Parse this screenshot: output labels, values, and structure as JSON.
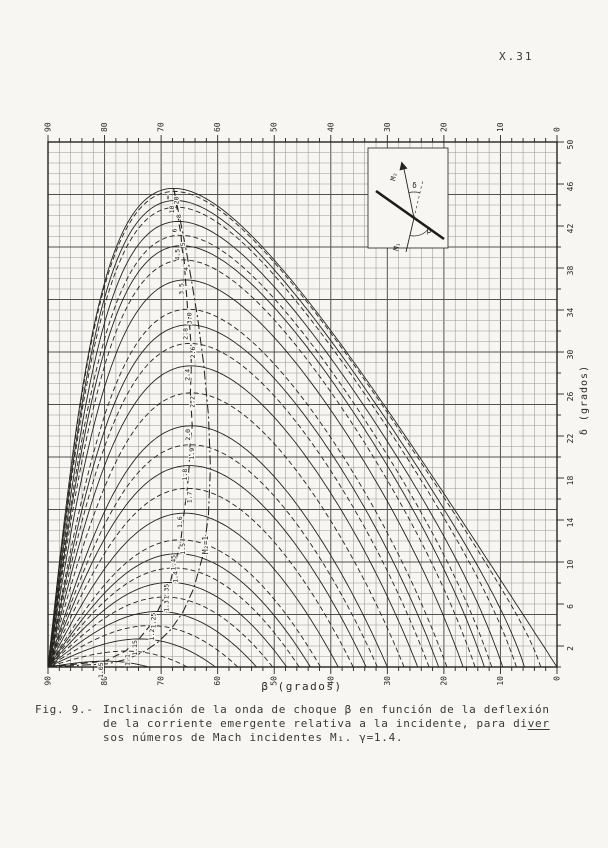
{
  "page": {
    "number": "X.31"
  },
  "caption": {
    "prefix": "Fig. 9.-",
    "line1": "Inclinación de la onda de choque β en función de la deflexión",
    "line2a": "de la corriente emergente relativa a la incidente, para di",
    "line2b": "ver",
    "line3": "sos números de Mach incidentes M₁. γ=1.4."
  },
  "chart_data": {
    "type": "line",
    "title": "Inclinación de la onda de choque β en función de la deflexión δ",
    "xlabel": "β (grados)",
    "ylabel": "δ (grados)",
    "gamma": 1.4,
    "grid": "on",
    "x_axis": {
      "min": 0,
      "max": 90,
      "reversed_left_to_right": true,
      "minor_step": 2,
      "labeled_ticks": [
        90,
        80,
        70,
        60,
        50,
        40,
        30,
        20,
        10,
        0
      ]
    },
    "y_axis": {
      "min": 0,
      "max": 50,
      "minor_step": 1,
      "labeled_ticks": [
        50,
        46,
        42,
        38,
        34,
        30,
        26,
        22,
        18,
        14,
        10,
        6,
        2
      ]
    },
    "series": [
      {
        "label": "1.05",
        "M": 1.05,
        "delta_max": 0.5
      },
      {
        "label": "1.1",
        "M": 1.1,
        "delta_max": 1.5
      },
      {
        "label": "1.15",
        "M": 1.15,
        "delta_max": 2.7
      },
      {
        "label": "1.2",
        "M": 1.2,
        "delta_max": 3.9
      },
      {
        "label": "1.25",
        "M": 1.25,
        "delta_max": 5.2
      },
      {
        "label": "1.3",
        "M": 1.3,
        "delta_max": 6.6
      },
      {
        "label": "1.35",
        "M": 1.35,
        "delta_max": 8.0
      },
      {
        "label": "1.4",
        "M": 1.4,
        "delta_max": 9.4
      },
      {
        "label": "1.45",
        "M": 1.45,
        "delta_max": 10.8
      },
      {
        "label": "1.5",
        "M": 1.5,
        "delta_max": 12.1
      },
      {
        "label": "1.6",
        "M": 1.6,
        "delta_max": 14.6
      },
      {
        "label": "1.7",
        "M": 1.7,
        "delta_max": 16.9
      },
      {
        "label": "1.8",
        "M": 1.8,
        "delta_max": 19.0
      },
      {
        "label": "1.9",
        "M": 1.9,
        "delta_max": 21.0
      },
      {
        "label": "2.0",
        "M": 2.0,
        "delta_max": 23.0
      },
      {
        "label": "2.2",
        "M": 2.2,
        "delta_max": 26.1
      },
      {
        "label": "2.4",
        "M": 2.4,
        "delta_max": 28.7
      },
      {
        "label": "2.6",
        "M": 2.6,
        "delta_max": 30.8
      },
      {
        "label": "2.8",
        "M": 2.8,
        "delta_max": 32.7
      },
      {
        "label": "3.0",
        "M": 3.0,
        "delta_max": 34.1
      },
      {
        "label": "3.5",
        "M": 3.5,
        "delta_max": 36.9
      },
      {
        "label": "4",
        "M": 4,
        "delta_max": 38.8
      },
      {
        "label": "4.5",
        "M": 4.5,
        "delta_max": 40.1
      },
      {
        "label": "5",
        "M": 5,
        "delta_max": 41.1
      },
      {
        "label": "6",
        "M": 6,
        "delta_max": 42.4
      },
      {
        "label": "8",
        "M": 8,
        "delta_max": 43.8
      },
      {
        "label": "10",
        "M": 10,
        "delta_max": 44.4
      },
      {
        "label": "20",
        "M": 20,
        "delta_max": 45.3
      },
      {
        "label": "∞",
        "M": 1000000,
        "delta_max": 45.6
      }
    ],
    "max_deflection_locus": {
      "style": "dashed"
    },
    "sonic_line": {
      "label": "M₂=1",
      "style": "dash-dot"
    },
    "inset": {
      "m1": "M₁",
      "m2": "M₂",
      "beta": "β",
      "delta": "δ"
    },
    "colors": {
      "ink": "#26241f",
      "grid_minor": "#9b988f",
      "grid_major": "#55524c",
      "paper": "#f7f6f2"
    }
  }
}
